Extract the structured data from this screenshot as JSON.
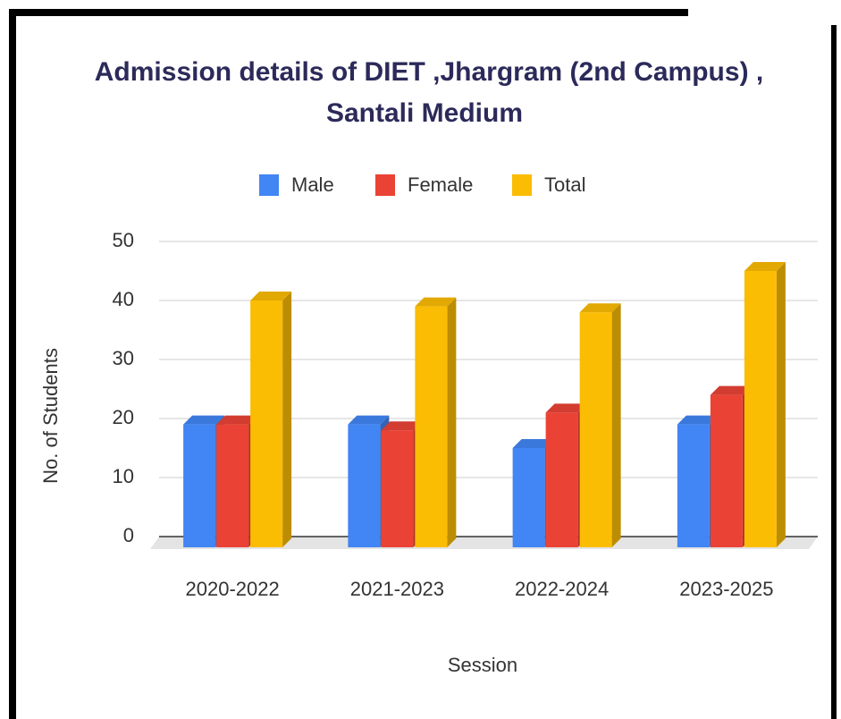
{
  "chart_data": {
    "type": "bar3d",
    "title": "Admission details of DIET ,Jhargram (2nd Campus) ,",
    "subtitle": "Santali Medium",
    "x_label": "Session",
    "y_label": "No. of Students",
    "categories": [
      "2020-2022",
      "2021-2023",
      "2022-2024",
      "2023-2025"
    ],
    "series": [
      {
        "name": "Male",
        "color": "#4285f4",
        "values": [
          19,
          19,
          15,
          19
        ]
      },
      {
        "name": "Female",
        "color": "#ea4335",
        "values": [
          19,
          18,
          21,
          24
        ]
      },
      {
        "name": "Total",
        "color": "#fbbc04",
        "values": [
          40,
          39,
          38,
          45
        ]
      }
    ],
    "ylim": [
      0,
      50
    ],
    "yticks": [
      0,
      10,
      20,
      30,
      40,
      50
    ],
    "grid": true,
    "legend": "top"
  }
}
